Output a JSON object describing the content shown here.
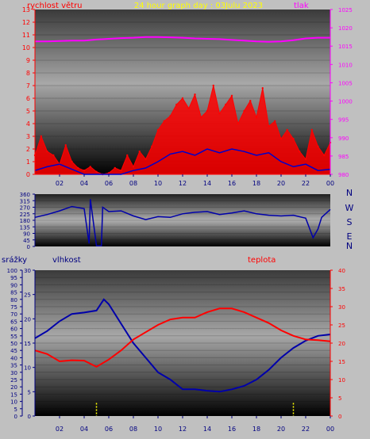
{
  "header": {
    "title": "24 hour graph day : 03Julu 2023",
    "wind_label": "rychlost větru",
    "pressure_label": "tlak"
  },
  "section2": {
    "rain_label": "srážky",
    "humidity_label": "vlhkost",
    "temp_label": "teplota"
  },
  "direction_letters": [
    "N",
    "W",
    "S",
    "E",
    "N"
  ],
  "colors": {
    "wind": "#ff0000",
    "gust": "#0000cc",
    "pressure": "#ff00ff",
    "humidity": "#0000aa",
    "temperature": "#ff0000",
    "rain": "#ffff00",
    "title": "#ffff00"
  },
  "chart_data": [
    {
      "type": "line",
      "name": "wind-pressure",
      "x_ticks": [
        "02",
        "04",
        "06",
        "08",
        "10",
        "12",
        "14",
        "16",
        "18",
        "20",
        "22",
        "00"
      ],
      "y_left": {
        "label": "rychlost větru",
        "min": 0,
        "max": 13,
        "ticks": [
          0,
          1,
          2,
          3,
          4,
          5,
          6,
          7,
          8,
          9,
          10,
          11,
          12,
          13
        ]
      },
      "y_right": {
        "label": "tlak",
        "min": 980,
        "max": 1025,
        "ticks": [
          980,
          985,
          990,
          995,
          1000,
          1005,
          1010,
          1015,
          1020,
          1025
        ]
      },
      "series": [
        {
          "name": "tlak",
          "axis": "right",
          "x": [
            0,
            1,
            2,
            3,
            4,
            5,
            6,
            7,
            8,
            9,
            10,
            11,
            12,
            13,
            14,
            15,
            16,
            17,
            18,
            19,
            20,
            21,
            22,
            23,
            24
          ],
          "values": [
            1016.3,
            1016.3,
            1016.4,
            1016.5,
            1016.5,
            1016.8,
            1017.0,
            1017.2,
            1017.3,
            1017.5,
            1017.5,
            1017.4,
            1017.3,
            1017.1,
            1017.0,
            1016.9,
            1016.7,
            1016.5,
            1016.3,
            1016.2,
            1016.3,
            1016.6,
            1017.1,
            1017.3,
            1017.3
          ]
        },
        {
          "name": "rychlost větru",
          "axis": "left",
          "x": [
            0,
            0.5,
            1,
            1.5,
            2,
            2.5,
            3,
            3.5,
            4,
            4.5,
            5,
            5.5,
            6,
            6.5,
            7,
            7.5,
            8,
            8.5,
            9,
            9.5,
            10,
            10.5,
            11,
            11.5,
            12,
            12.5,
            13,
            13.5,
            14,
            14.5,
            15,
            15.5,
            16,
            16.5,
            17,
            17.5,
            18,
            18.5,
            19,
            19.5,
            20,
            20.5,
            21,
            21.5,
            22,
            22.5,
            23,
            23.5,
            24
          ],
          "values": [
            1.5,
            3.0,
            1.8,
            1.5,
            0.8,
            2.3,
            1.0,
            0.5,
            0.3,
            0.6,
            0.2,
            0.0,
            0.1,
            0.5,
            0.3,
            1.5,
            0.6,
            1.8,
            1.2,
            2.2,
            3.5,
            4.2,
            4.6,
            5.5,
            6.0,
            5.2,
            6.3,
            4.5,
            5.0,
            7.0,
            4.8,
            5.5,
            6.2,
            4.0,
            5.0,
            5.8,
            4.5,
            6.8,
            3.8,
            4.2,
            2.8,
            3.5,
            2.8,
            1.8,
            1.2,
            3.5,
            2.2,
            1.5,
            2.5
          ]
        },
        {
          "name": "nárazy",
          "axis": "left",
          "x": [
            0,
            1,
            2,
            3,
            4,
            5,
            6,
            7,
            8,
            9,
            10,
            11,
            12,
            13,
            14,
            15,
            16,
            17,
            18,
            19,
            20,
            21,
            22,
            23,
            24
          ],
          "values": [
            0.3,
            0.6,
            0.8,
            0.4,
            0.0,
            0.0,
            0.0,
            0.0,
            0.3,
            0.5,
            1.0,
            1.6,
            1.8,
            1.5,
            2.0,
            1.7,
            2.0,
            1.8,
            1.5,
            1.7,
            1.0,
            0.6,
            0.8,
            0.3,
            0.4
          ]
        }
      ]
    },
    {
      "type": "line",
      "name": "wind-direction",
      "y": {
        "min": 0,
        "max": 360,
        "ticks": [
          0,
          45,
          90,
          135,
          180,
          225,
          270,
          315,
          360
        ]
      },
      "series": [
        {
          "name": "směr větru",
          "x": [
            0,
            1,
            2,
            3,
            4,
            4.4,
            4.5,
            5,
            5.4,
            5.5,
            6,
            7,
            8,
            9,
            10,
            11,
            12,
            13,
            14,
            15,
            16,
            17,
            18,
            19,
            20,
            21,
            22,
            22.6,
            23,
            23.3,
            24
          ],
          "values": [
            200,
            220,
            245,
            275,
            260,
            20,
            325,
            5,
            5,
            270,
            240,
            245,
            210,
            185,
            205,
            200,
            225,
            235,
            240,
            220,
            230,
            245,
            225,
            215,
            210,
            215,
            195,
            60,
            120,
            200,
            255
          ]
        }
      ]
    },
    {
      "type": "line",
      "name": "humidity-temperature",
      "y_rain": {
        "label": "srážky",
        "min": 0,
        "max": 100,
        "ticks": [
          0,
          5,
          10,
          15,
          20,
          25,
          30,
          35,
          40,
          45,
          50,
          55,
          60,
          65,
          70,
          75,
          80,
          85,
          90,
          95,
          100
        ]
      },
      "y_humidity": {
        "label": "vlhkost",
        "min": 0,
        "max": 30,
        "ticks": [
          0,
          5,
          10,
          15,
          20,
          25,
          30
        ]
      },
      "y_temp": {
        "label": "teplota",
        "min": 0,
        "max": 40,
        "ticks": [
          0,
          5,
          10,
          15,
          20,
          25,
          30,
          35,
          40
        ]
      },
      "series": [
        {
          "name": "vlhkost",
          "axis": "humidity",
          "x": [
            0,
            1,
            2,
            3,
            4,
            5,
            5.6,
            6,
            7,
            8,
            9,
            10,
            11,
            12,
            13,
            14,
            15,
            16,
            17,
            18,
            19,
            20,
            21,
            22,
            23,
            24
          ],
          "values": [
            16,
            17.5,
            19.5,
            21,
            21.3,
            21.7,
            24,
            23,
            19,
            15,
            12,
            9,
            7.5,
            5.5,
            5.5,
            5.2,
            5.0,
            5.5,
            6.2,
            7.5,
            9.5,
            12,
            14,
            15.5,
            16.5,
            16.8
          ]
        },
        {
          "name": "teplota",
          "axis": "temp",
          "x": [
            0,
            1,
            2,
            3,
            4,
            5,
            6,
            7,
            8,
            9,
            10,
            11,
            12,
            13,
            14,
            15,
            16,
            17,
            18,
            19,
            20,
            21,
            22,
            23,
            24
          ],
          "values": [
            18,
            17,
            15,
            15.3,
            15.2,
            13.5,
            15.5,
            18,
            21,
            23,
            25,
            26.5,
            27,
            27,
            28.5,
            29.5,
            29.5,
            28.5,
            27,
            25.5,
            23.5,
            22.0,
            21.0,
            20.8,
            20.5
          ]
        },
        {
          "name": "srážky",
          "axis": "rain",
          "x": [
            5.0,
            21.0
          ],
          "values": [
            9,
            9
          ]
        }
      ]
    }
  ]
}
